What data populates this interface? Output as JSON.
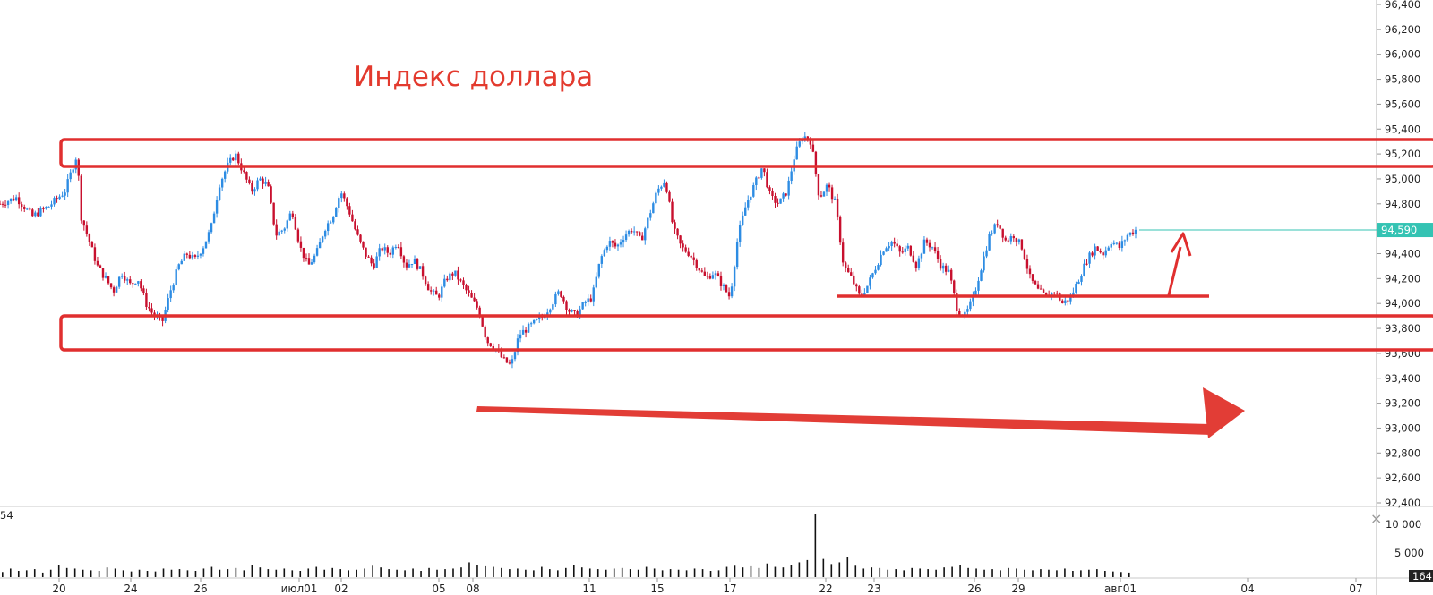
{
  "chart_data": {
    "type": "candlestick",
    "title": "Индекс доллара",
    "price_axis": {
      "ticks": [
        "92,400",
        "92,600",
        "92,800",
        "93,000",
        "93,200",
        "93,400",
        "93,600",
        "93,800",
        "94,000",
        "94,200",
        "94,400",
        "94,600",
        "94,800",
        "95,000",
        "95,200",
        "95,400",
        "95,600",
        "95,800",
        "96,000",
        "96,200",
        "96,400"
      ],
      "ylim": [
        92.4,
        96.4
      ],
      "last_price": "94,590",
      "last_price_value": 94.59
    },
    "date_axis": {
      "labels": [
        "20",
        "24",
        "26",
        "июл01",
        "02",
        "05",
        "08",
        "11",
        "15",
        "17",
        "22",
        "23",
        "26",
        "29",
        "авг01",
        "04",
        "07"
      ]
    },
    "series": [
      {
        "points": [
          [
            0,
            94.8
          ],
          [
            2,
            94.85
          ],
          [
            4,
            94.7
          ],
          [
            6,
            94.78
          ],
          [
            8,
            94.9
          ],
          [
            9,
            95.1
          ],
          [
            9.5,
            95.2
          ],
          [
            10,
            94.7
          ],
          [
            11,
            94.5
          ],
          [
            12,
            94.3
          ],
          [
            13,
            94.2
          ],
          [
            14,
            94.1
          ],
          [
            15,
            94.25
          ],
          [
            16,
            94.15
          ],
          [
            17,
            94.2
          ],
          [
            18,
            94.0
          ],
          [
            19,
            93.9
          ],
          [
            20,
            93.85
          ],
          [
            21,
            94.1
          ],
          [
            22,
            94.3
          ],
          [
            23,
            94.4
          ],
          [
            24,
            94.35
          ],
          [
            25,
            94.45
          ],
          [
            26,
            94.6
          ],
          [
            27,
            94.95
          ],
          [
            28,
            95.1
          ],
          [
            29,
            95.2
          ],
          [
            30,
            95.05
          ],
          [
            31,
            94.9
          ],
          [
            32,
            95.0
          ],
          [
            33,
            94.95
          ],
          [
            34,
            94.55
          ],
          [
            35,
            94.6
          ],
          [
            36,
            94.75
          ],
          [
            37,
            94.45
          ],
          [
            38,
            94.3
          ],
          [
            39,
            94.4
          ],
          [
            40,
            94.6
          ],
          [
            41,
            94.7
          ],
          [
            42,
            94.9
          ],
          [
            43,
            94.75
          ],
          [
            44,
            94.55
          ],
          [
            45,
            94.4
          ],
          [
            46,
            94.3
          ],
          [
            47,
            94.45
          ],
          [
            48,
            94.4
          ],
          [
            49,
            94.5
          ],
          [
            50,
            94.3
          ],
          [
            51,
            94.35
          ],
          [
            52,
            94.25
          ],
          [
            53,
            94.1
          ],
          [
            54,
            94.05
          ],
          [
            55,
            94.2
          ],
          [
            56,
            94.25
          ],
          [
            57,
            94.15
          ],
          [
            58,
            94.05
          ],
          [
            59,
            93.95
          ],
          [
            60,
            93.7
          ],
          [
            61,
            93.65
          ],
          [
            62,
            93.55
          ],
          [
            63,
            93.5
          ],
          [
            64,
            93.75
          ],
          [
            65,
            93.8
          ],
          [
            66,
            93.85
          ],
          [
            67,
            93.9
          ],
          [
            68,
            94.0
          ],
          [
            69,
            94.1
          ],
          [
            70,
            93.95
          ],
          [
            71,
            93.9
          ],
          [
            72,
            94.0
          ],
          [
            73,
            94.05
          ],
          [
            74,
            94.35
          ],
          [
            75,
            94.5
          ],
          [
            76,
            94.45
          ],
          [
            77,
            94.55
          ],
          [
            78,
            94.6
          ],
          [
            79,
            94.5
          ],
          [
            80,
            94.7
          ],
          [
            81,
            94.9
          ],
          [
            82,
            95.0
          ],
          [
            83,
            94.6
          ],
          [
            84,
            94.45
          ],
          [
            85,
            94.4
          ],
          [
            86,
            94.3
          ],
          [
            87,
            94.2
          ],
          [
            88,
            94.25
          ],
          [
            89,
            94.15
          ],
          [
            90,
            94.05
          ],
          [
            91,
            94.55
          ],
          [
            92,
            94.8
          ],
          [
            93,
            94.95
          ],
          [
            94,
            95.1
          ],
          [
            95,
            94.85
          ],
          [
            96,
            94.8
          ],
          [
            97,
            94.9
          ],
          [
            98,
            95.2
          ],
          [
            99,
            95.35
          ],
          [
            100,
            95.3
          ],
          [
            101,
            94.85
          ],
          [
            102,
            94.95
          ],
          [
            103,
            94.8
          ],
          [
            104,
            94.3
          ],
          [
            105,
            94.2
          ],
          [
            106,
            94.05
          ],
          [
            107,
            94.15
          ],
          [
            108,
            94.3
          ],
          [
            109,
            94.45
          ],
          [
            110,
            94.5
          ],
          [
            111,
            94.4
          ],
          [
            112,
            94.45
          ],
          [
            113,
            94.3
          ],
          [
            114,
            94.5
          ],
          [
            115,
            94.45
          ],
          [
            116,
            94.3
          ],
          [
            117,
            94.25
          ],
          [
            118,
            93.95
          ],
          [
            119,
            93.9
          ],
          [
            120,
            94.05
          ],
          [
            121,
            94.3
          ],
          [
            122,
            94.55
          ],
          [
            123,
            94.65
          ],
          [
            124,
            94.5
          ],
          [
            125,
            94.55
          ],
          [
            126,
            94.45
          ],
          [
            127,
            94.2
          ],
          [
            128,
            94.1
          ],
          [
            129,
            94.05
          ],
          [
            130,
            94.1
          ],
          [
            131,
            94.0
          ],
          [
            132,
            94.05
          ],
          [
            133,
            94.2
          ],
          [
            134,
            94.35
          ],
          [
            135,
            94.45
          ],
          [
            136,
            94.4
          ],
          [
            137,
            94.5
          ],
          [
            138,
            94.45
          ],
          [
            139,
            94.55
          ],
          [
            140,
            94.59
          ]
        ]
      }
    ],
    "annotations": {
      "resistance_box": "95,100–95,300",
      "support_box": "93,600–93,850",
      "support_line": "94,040",
      "arrow_up": "short-term up",
      "arrow_right": "long-term trend"
    },
    "volume_axis": {
      "ticks": [
        "10 000",
        "5 000"
      ],
      "current_label": "164",
      "left_label": "54"
    },
    "volume_values": [
      900,
      1500,
      1100,
      1200,
      1400,
      800,
      1300,
      2100,
      1600,
      1500,
      1300,
      1200,
      1100,
      1700,
      1500,
      1200,
      1000,
      1300,
      1100,
      1000,
      1500,
      1300,
      1400,
      1200,
      1100,
      1500,
      1800,
      1300,
      1400,
      1600,
      1200,
      2200,
      1700,
      1400,
      1300,
      1500,
      1200,
      1100,
      1500,
      1800,
      1300,
      1600,
      1400,
      1200,
      1300,
      1500,
      2000,
      1700,
      1400,
      1300,
      1200,
      1500,
      1100,
      1600,
      1300,
      1400,
      1500,
      1700,
      2600,
      2200,
      1900,
      1800,
      1600,
      1400,
      1500,
      1300,
      1200,
      1800,
      1400,
      1200,
      1600,
      2100,
      1700,
      1500,
      1400,
      1300,
      1500,
      1600,
      1400,
      1300,
      1800,
      1500,
      1200,
      1400,
      1300,
      1200,
      1500,
      1400,
      1100,
      1200,
      1800,
      2000,
      1700,
      1900,
      1600,
      2400,
      1800,
      1700,
      2100,
      2600,
      3000,
      11000,
      3200,
      2300,
      2600,
      3600,
      2000,
      1500,
      1700,
      1600,
      1300,
      1400,
      1200,
      1600,
      1500,
      1400,
      1300,
      1700,
      1800,
      2200,
      1600,
      1500,
      1300,
      1400,
      1200,
      1600,
      1500,
      1300,
      1200,
      1400,
      1300,
      1200,
      1500,
      1100,
      1200,
      1300,
      1400,
      1100,
      1000,
      900,
      800
    ]
  },
  "close_icon": "×"
}
